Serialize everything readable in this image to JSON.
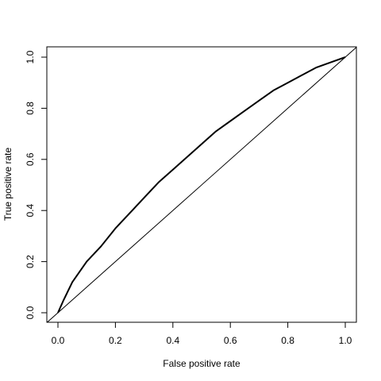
{
  "chart_data": {
    "type": "line",
    "title": "",
    "xlabel": "False positive rate",
    "ylabel": "True positive rate",
    "xlim": [
      0,
      1
    ],
    "ylim": [
      0,
      1
    ],
    "xticks": [
      "0.0",
      "0.2",
      "0.4",
      "0.6",
      "0.8",
      "1.0"
    ],
    "yticks": [
      "0.0",
      "0.2",
      "0.4",
      "0.6",
      "0.8",
      "1.0"
    ],
    "grid": false,
    "legend": "none",
    "series": [
      {
        "role": "roc-curve",
        "x": [
          0,
          0.02,
          0.05,
          0.1,
          0.15,
          0.2,
          0.25,
          0.3,
          0.35,
          0.4,
          0.45,
          0.5,
          0.55,
          0.6,
          0.65,
          0.7,
          0.75,
          0.8,
          0.85,
          0.9,
          0.95,
          1.0
        ],
        "y": [
          0,
          0.05,
          0.12,
          0.2,
          0.26,
          0.33,
          0.39,
          0.45,
          0.51,
          0.56,
          0.61,
          0.66,
          0.71,
          0.75,
          0.79,
          0.83,
          0.87,
          0.9,
          0.93,
          0.96,
          0.98,
          1.0
        ]
      },
      {
        "role": "diagonal-reference",
        "x": [
          -0.04,
          1.04
        ],
        "y": [
          -0.04,
          1.04
        ]
      }
    ]
  }
}
